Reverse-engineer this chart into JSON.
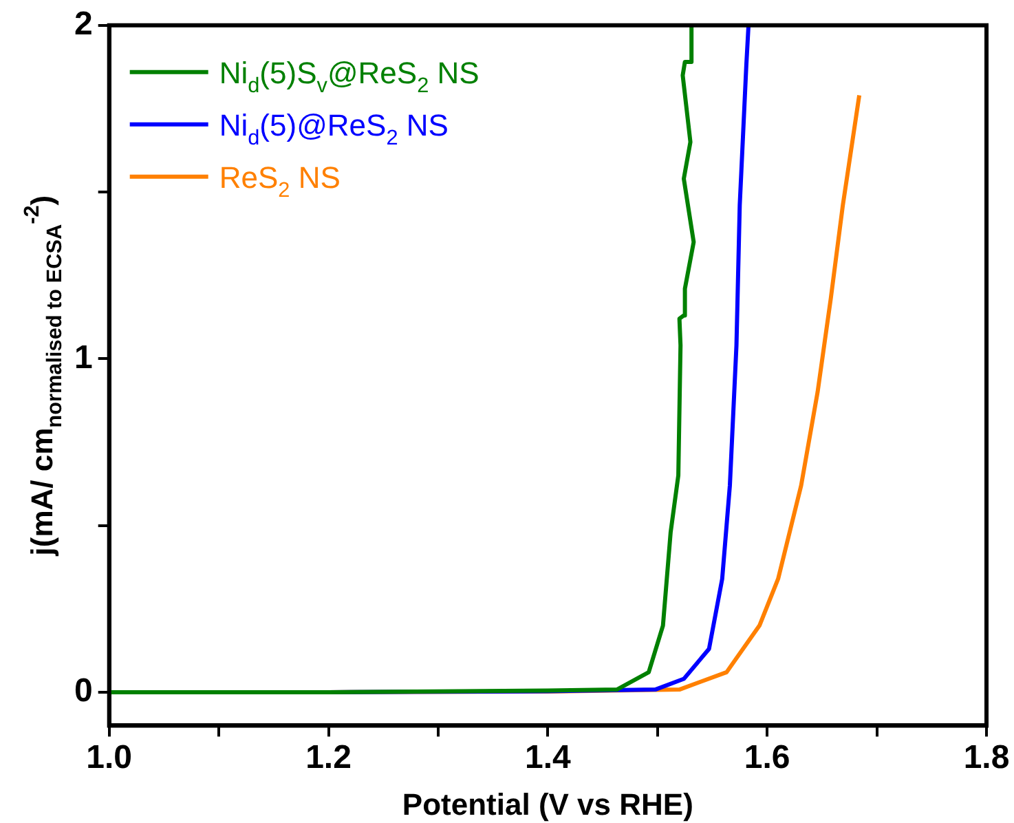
{
  "chart_data": {
    "type": "line",
    "xlabel": "Potential (V vs RHE)",
    "ylabel": "j(mA/ cm$_{normalised to ECSA}$$^{-2}$)",
    "xlim": [
      1.0,
      1.8
    ],
    "xticks": [
      {
        "value": 1,
        "label": "1.0"
      },
      {
        "value": 1.1,
        "label": null
      },
      1.2,
      {
        "value": 1.3,
        "label": null
      },
      1.4,
      {
        "value": 1.5,
        "label": null
      },
      1.6,
      {
        "value": 1.7,
        "label": null
      },
      1.8
    ],
    "ylim": [
      -0.1,
      2
    ],
    "yticks": [
      0,
      {
        "value": 0.5,
        "label": null
      },
      1,
      {
        "value": 1.5,
        "label": null
      },
      2
    ],
    "grid": false,
    "legend": "top left",
    "marker": "none",
    "line_style": "solid",
    "series": [
      {
        "name": "Ni$_{d}$(5)S$_{v}$@ReS$_{2}$ NS",
        "color": "#008000",
        "x": [
          1.0,
          1.2,
          1.4,
          1.463,
          1.492,
          1.505,
          1.512,
          1.519,
          1.521,
          1.52,
          1.524,
          1.525,
          1.533,
          1.524,
          1.53,
          1.523,
          1.525,
          1.531,
          1.531
        ],
        "values": [
          0,
          0,
          0.005,
          0.008,
          0.06,
          0.2,
          0.48,
          0.65,
          1.04,
          1.12,
          1.13,
          1.21,
          1.35,
          1.54,
          1.65,
          1.85,
          1.89,
          1.89,
          2.0
        ]
      },
      {
        "name": "Ni$_{d}$(5)@ReS$_{2}$ NS",
        "color": "#0000ff",
        "x": [
          1.0,
          1.2,
          1.4,
          1.498,
          1.524,
          1.547,
          1.559,
          1.566,
          1.572,
          1.575,
          1.579,
          1.581,
          1.583
        ],
        "values": [
          0,
          0,
          0.003,
          0.008,
          0.04,
          0.13,
          0.34,
          0.62,
          1.04,
          1.46,
          1.74,
          1.88,
          2.0
        ]
      },
      {
        "name": "ReS$_{2}$ NS",
        "color": "#ff8000",
        "x": [
          1.0,
          1.2,
          1.4,
          1.52,
          1.563,
          1.593,
          1.61,
          1.631,
          1.646,
          1.658,
          1.669,
          1.684
        ],
        "values": [
          0,
          0,
          0.002,
          0.008,
          0.06,
          0.2,
          0.34,
          0.62,
          0.9,
          1.18,
          1.46,
          1.79
        ]
      }
    ]
  }
}
